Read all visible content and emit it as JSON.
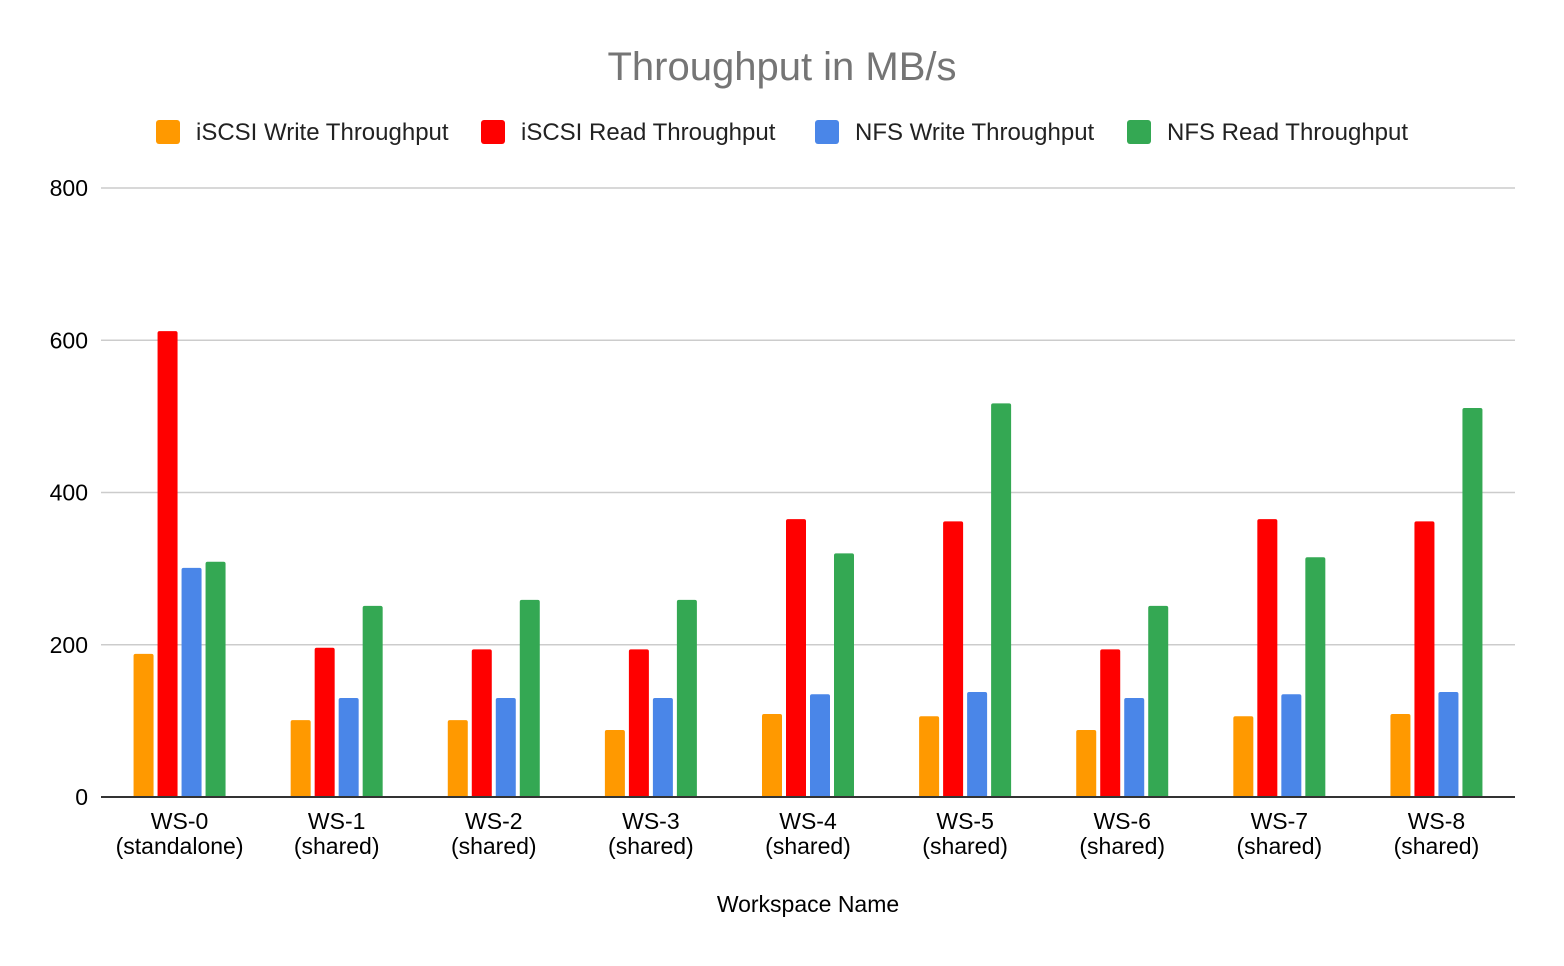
{
  "chart_data": {
    "type": "bar",
    "title": "Throughput in MB/s",
    "xlabel": "Workspace Name",
    "ylabel": "",
    "ylim": [
      0,
      800
    ],
    "yticks": [
      0,
      200,
      400,
      600,
      800
    ],
    "grid": true,
    "legend_position": "top",
    "categories": [
      [
        "WS-0",
        "(standalone)"
      ],
      [
        "WS-1",
        "(shared)"
      ],
      [
        "WS-2",
        "(shared)"
      ],
      [
        "WS-3",
        "(shared)"
      ],
      [
        "WS-4",
        "(shared)"
      ],
      [
        "WS-5",
        "(shared)"
      ],
      [
        "WS-6",
        "(shared)"
      ],
      [
        "WS-7",
        "(shared)"
      ],
      [
        "WS-8",
        "(shared)"
      ]
    ],
    "series": [
      {
        "name": "iSCSI Write Throughput",
        "color": "#ff9900",
        "values": [
          188,
          101,
          101,
          88,
          109,
          106,
          88,
          106,
          109
        ]
      },
      {
        "name": "iSCSI Read Throughput",
        "color": "#ff0000",
        "values": [
          612,
          196,
          194,
          194,
          365,
          362,
          194,
          365,
          362
        ]
      },
      {
        "name": "NFS Write Throughput",
        "color": "#4a86e8",
        "values": [
          301,
          130,
          130,
          130,
          135,
          138,
          130,
          135,
          138
        ]
      },
      {
        "name": "NFS Read Throughput",
        "color": "#34a853",
        "values": [
          309,
          251,
          259,
          259,
          320,
          517,
          251,
          315,
          511
        ]
      }
    ]
  }
}
